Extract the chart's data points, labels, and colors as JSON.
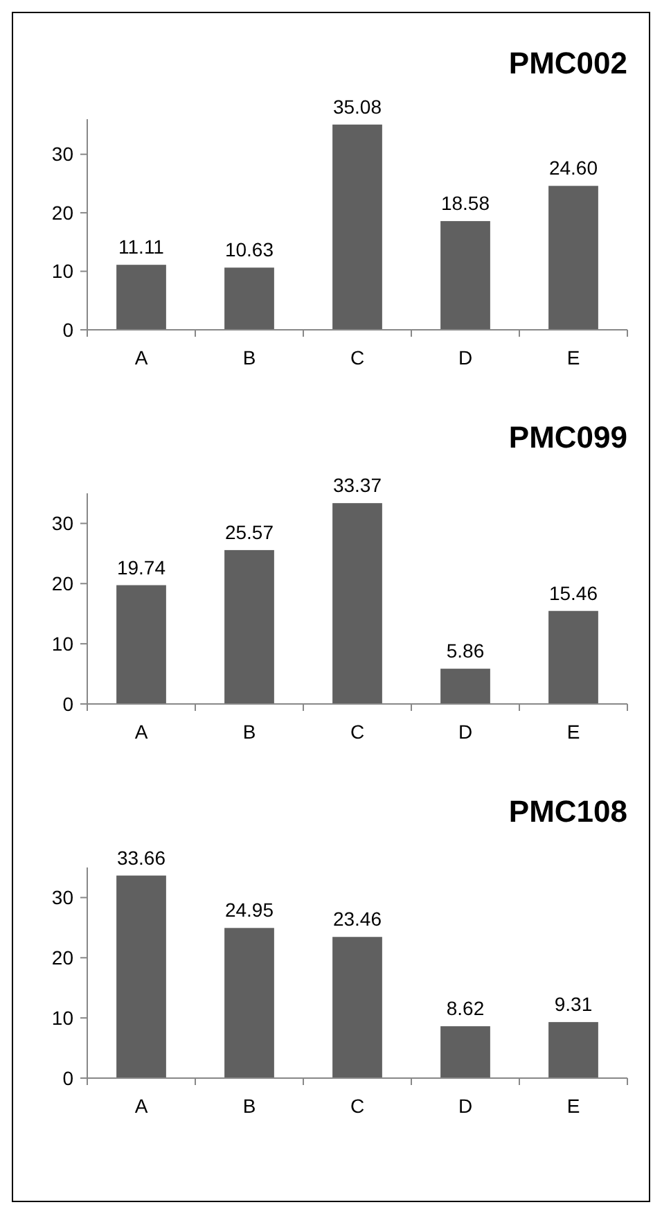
{
  "chart_data": [
    {
      "type": "bar",
      "title": "PMC002",
      "categories": [
        "A",
        "B",
        "C",
        "D",
        "E"
      ],
      "values": [
        11.11,
        10.63,
        35.08,
        18.58,
        24.6
      ],
      "value_labels": [
        "11.11",
        "10.63",
        "35.08",
        "18.58",
        "24.60"
      ],
      "color": "#606060",
      "ylim": [
        0,
        36
      ],
      "yticks": [
        0,
        10,
        20,
        30
      ],
      "grid": false
    },
    {
      "type": "bar",
      "title": "PMC099",
      "categories": [
        "A",
        "B",
        "C",
        "D",
        "E"
      ],
      "values": [
        19.74,
        25.57,
        33.37,
        5.86,
        15.46
      ],
      "value_labels": [
        "19.74",
        "25.57",
        "33.37",
        "5.86",
        "15.46"
      ],
      "color": "#606060",
      "ylim": [
        0,
        35
      ],
      "yticks": [
        0,
        10,
        20,
        30
      ],
      "grid": false
    },
    {
      "type": "bar",
      "title": "PMC108",
      "categories": [
        "A",
        "B",
        "C",
        "D",
        "E"
      ],
      "values": [
        33.66,
        24.95,
        23.46,
        8.62,
        9.31
      ],
      "value_labels": [
        "33.66",
        "24.95",
        "23.46",
        "8.62",
        "9.31"
      ],
      "color": "#606060",
      "ylim": [
        0,
        35
      ],
      "yticks": [
        0,
        10,
        20,
        30
      ],
      "grid": false
    }
  ]
}
